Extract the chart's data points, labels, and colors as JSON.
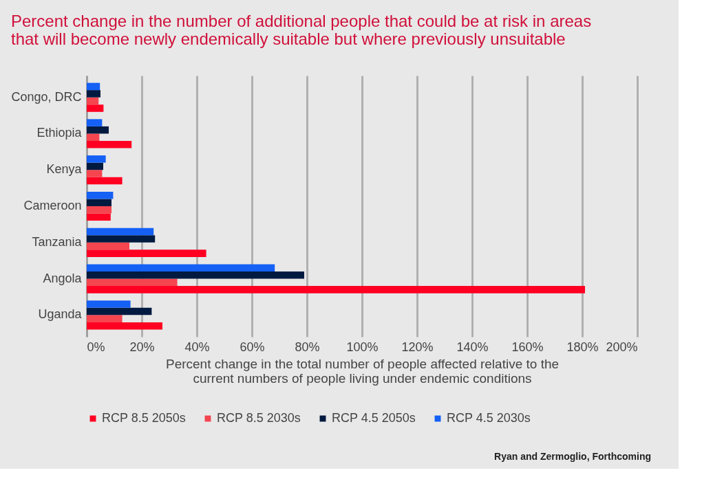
{
  "chart_data": {
    "type": "bar",
    "orientation": "horizontal",
    "title": [
      "Percent change in the number of additional people that could be at risk in areas",
      "that will become newly endemically suitable but where previously unsuitable"
    ],
    "xlabel": [
      "Percent change in the total number of people affected relative to the",
      "current numbers of people living under endemic conditions"
    ],
    "categories": [
      "Congo, DRC",
      "Ethiopia",
      "Kenya",
      "Cameroon",
      "Tanzania",
      "Angola",
      "Uganda"
    ],
    "series": [
      {
        "name": "RCP 8.5 2050s",
        "color": "#ff0022",
        "values": [
          6.1,
          16.3,
          12.9,
          8.7,
          43.4,
          181,
          27.5
        ]
      },
      {
        "name": "RCP 8.5 2030s",
        "color": "#f5454f",
        "values": [
          4.3,
          4.6,
          5.6,
          9.0,
          15.5,
          32.9,
          12.9
        ]
      },
      {
        "name": "RCP 4.5 2050s",
        "color": "#001a40",
        "values": [
          5.0,
          8.0,
          6.0,
          9.0,
          24.8,
          79.0,
          23.6
        ]
      },
      {
        "name": "RCP 4.5 2030s",
        "color": "#1560f5",
        "values": [
          4.8,
          5.6,
          6.9,
          9.6,
          24.3,
          68.3,
          15.9
        ]
      }
    ],
    "xlim": [
      0,
      200
    ],
    "xticks": [
      {
        "value": 0,
        "label": "0%"
      },
      {
        "value": 20,
        "label": "20%"
      },
      {
        "value": 40,
        "label": "40%"
      },
      {
        "value": 60,
        "label": "60%"
      },
      {
        "value": 80,
        "label": "80%"
      },
      {
        "value": 100,
        "label": "100%"
      },
      {
        "value": 120,
        "label": "120%"
      },
      {
        "value": 140,
        "label": "140%"
      },
      {
        "value": 160,
        "label": "160%"
      },
      {
        "value": 180,
        "label": "180%"
      },
      {
        "value": 200,
        "label": "200%"
      }
    ],
    "grid": "x",
    "legend": "bottom",
    "annotations": [
      "Ryan and Zermoglio, Forthcoming"
    ]
  }
}
